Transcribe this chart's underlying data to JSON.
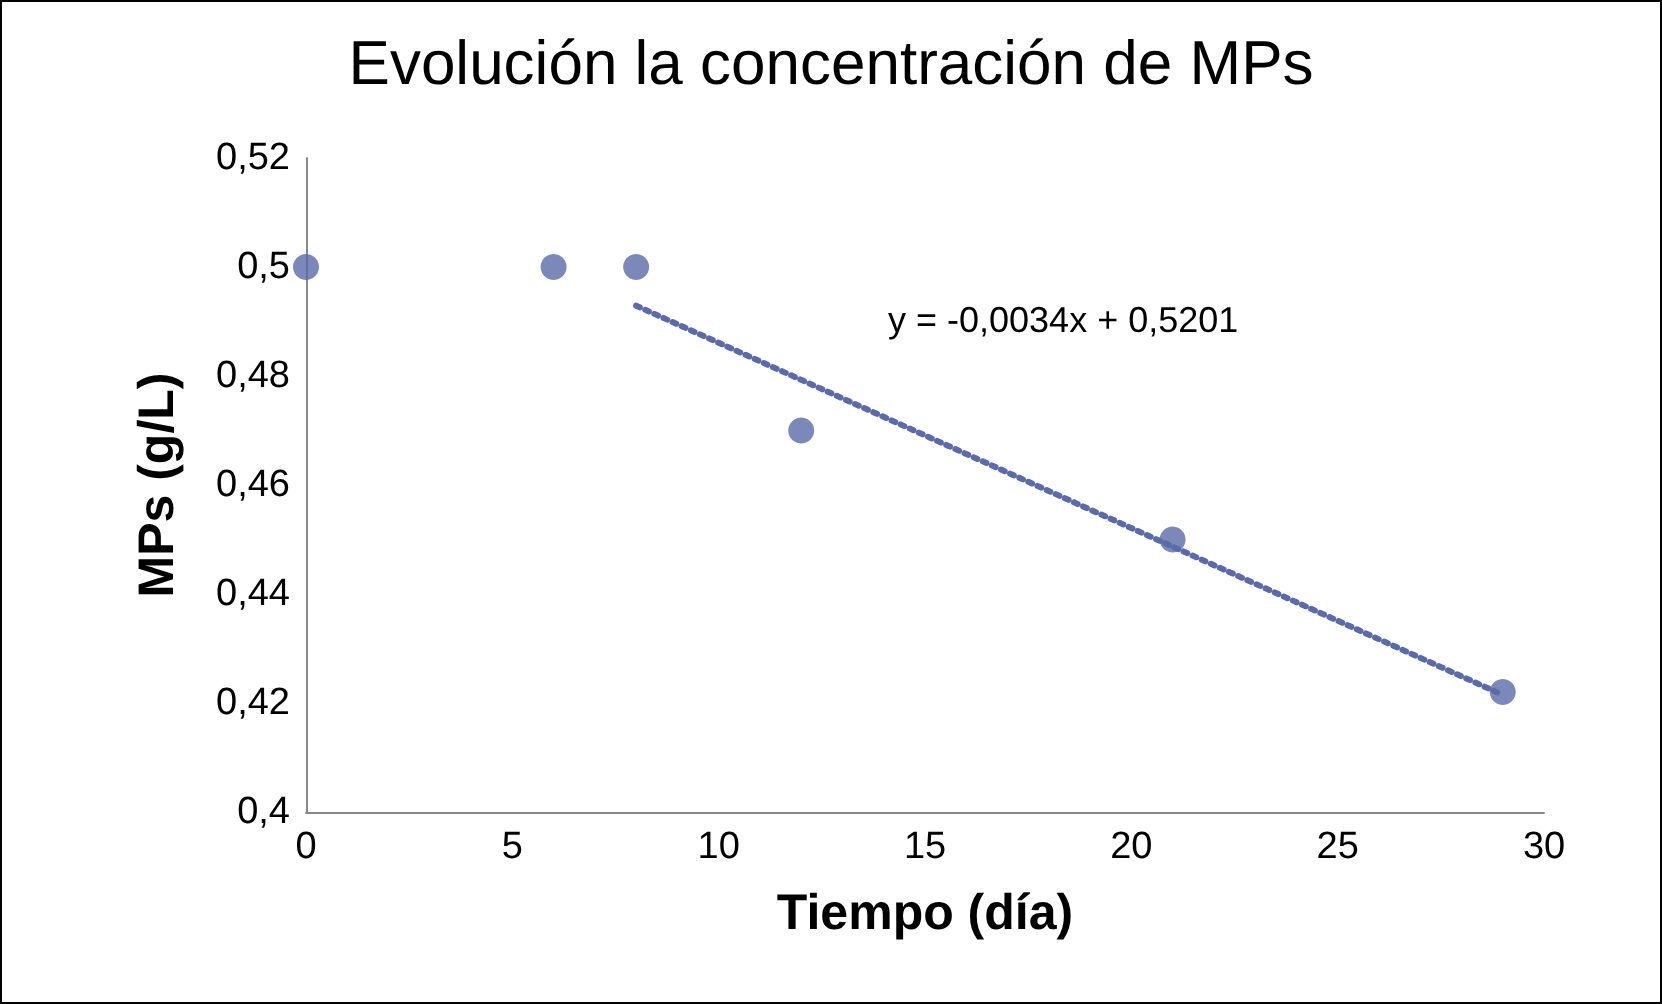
{
  "chart_data": {
    "type": "scatter",
    "title": "Evolución la concentración de MPs",
    "xlabel": "Tiempo (día)",
    "ylabel": "MPs (g/L)",
    "x": [
      0,
      6,
      8,
      12,
      21,
      29
    ],
    "series": [
      {
        "type": "scatter",
        "color": "#5b6aa8",
        "marker": "circle",
        "values": [
          0.5,
          0.5,
          0.5,
          0.47,
          0.45,
          0.422
        ]
      },
      {
        "type": "line",
        "color": "#5b6aa8",
        "line_style": "dotted",
        "marker": "none",
        "x": [
          8,
          29
        ],
        "values": [
          0.4929,
          0.4215
        ]
      }
    ],
    "xlim": [
      0,
      30
    ],
    "xticks": [
      0,
      5,
      10,
      15,
      20,
      25,
      30
    ],
    "ylim": [
      0.4,
      0.52
    ],
    "yticks": [
      {
        "value": 0.4,
        "label": "0,4"
      },
      {
        "value": 0.42,
        "label": "0,42"
      },
      {
        "value": 0.44,
        "label": "0,44"
      },
      {
        "value": 0.46,
        "label": "0,46"
      },
      {
        "value": 0.48,
        "label": "0,48"
      },
      {
        "value": 0.5,
        "label": "0,5"
      },
      {
        "value": 0.52,
        "label": "0,52"
      }
    ],
    "annotations": [
      "y = -0,0034x + 0,5201"
    ],
    "grid": false
  }
}
